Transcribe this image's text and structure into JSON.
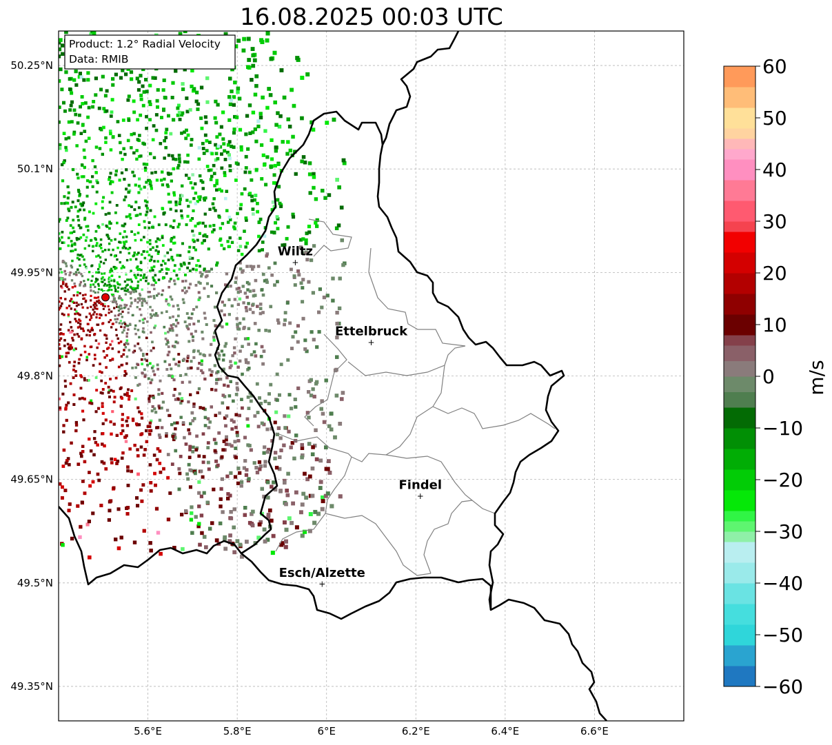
{
  "title": "16.08.2025 00:03 UTC",
  "info": {
    "product": "Product: 1.2° Radial Velocity",
    "data": "Data: RMIB"
  },
  "map": {
    "lon_range": [
      5.4,
      6.8
    ],
    "lat_range": [
      49.3,
      50.3
    ],
    "x_ticks": [
      {
        "value": 5.6,
        "label": "5.6°E"
      },
      {
        "value": 5.8,
        "label": "5.8°E"
      },
      {
        "value": 6.0,
        "label": "6°E"
      },
      {
        "value": 6.2,
        "label": "6.2°E"
      },
      {
        "value": 6.4,
        "label": "6.4°E"
      },
      {
        "value": 6.6,
        "label": "6.6°E"
      }
    ],
    "y_ticks": [
      {
        "value": 50.25,
        "label": "50.25°N"
      },
      {
        "value": 50.1,
        "label": "50.1°N"
      },
      {
        "value": 49.95,
        "label": "49.95°N"
      },
      {
        "value": 49.8,
        "label": "49.8°N"
      },
      {
        "value": 49.65,
        "label": "49.65°N"
      },
      {
        "value": 49.5,
        "label": "49.5°N"
      },
      {
        "value": 49.35,
        "label": "49.35°N"
      }
    ],
    "radar_site": {
      "lon": 5.505,
      "lat": 49.914
    },
    "cities": [
      {
        "name": "Wiltz",
        "lon": 5.93,
        "lat": 49.965
      },
      {
        "name": "Ettelbruck",
        "lon": 6.1,
        "lat": 49.849
      },
      {
        "name": "Findel",
        "lon": 6.21,
        "lat": 49.626
      },
      {
        "name": "Esch/Alzette",
        "lon": 5.99,
        "lat": 49.499
      }
    ]
  },
  "colorbar": {
    "label": "m/s",
    "min": -60,
    "max": 60,
    "ticks": [
      {
        "value": 60,
        "label": "60"
      },
      {
        "value": 50,
        "label": "50"
      },
      {
        "value": 40,
        "label": "40"
      },
      {
        "value": 30,
        "label": "30"
      },
      {
        "value": 20,
        "label": "20"
      },
      {
        "value": 10,
        "label": "10"
      },
      {
        "value": 0,
        "label": "0"
      },
      {
        "value": -10,
        "label": "−10"
      },
      {
        "value": -20,
        "label": "−20"
      },
      {
        "value": -30,
        "label": "−30"
      },
      {
        "value": -40,
        "label": "−40"
      },
      {
        "value": -50,
        "label": "−50"
      },
      {
        "value": -60,
        "label": "−60"
      }
    ],
    "bands": [
      {
        "from": -60,
        "to": -56,
        "color": "#1f78c1"
      },
      {
        "from": -56,
        "to": -52,
        "color": "#2aa4d0"
      },
      {
        "from": -52,
        "to": -48,
        "color": "#2fd6da"
      },
      {
        "from": -48,
        "to": -44,
        "color": "#45dede"
      },
      {
        "from": -44,
        "to": -40,
        "color": "#6ae3e3"
      },
      {
        "from": -40,
        "to": -36,
        "color": "#9aeaea"
      },
      {
        "from": -36,
        "to": -32,
        "color": "#b9eef0"
      },
      {
        "from": -32,
        "to": -30,
        "color": "#8ff0a8"
      },
      {
        "from": -30,
        "to": -28,
        "color": "#5ef570"
      },
      {
        "from": -28,
        "to": -26,
        "color": "#30f545"
      },
      {
        "from": -26,
        "to": -22,
        "color": "#05e808"
      },
      {
        "from": -22,
        "to": -18,
        "color": "#02cc06"
      },
      {
        "from": -18,
        "to": -14,
        "color": "#01ad05"
      },
      {
        "from": -14,
        "to": -10,
        "color": "#018f05"
      },
      {
        "from": -10,
        "to": -6,
        "color": "#036b04"
      },
      {
        "from": -6,
        "to": -3,
        "color": "#4f7e4f"
      },
      {
        "from": -3,
        "to": 0,
        "color": "#6d8a6a"
      },
      {
        "from": 0,
        "to": 3,
        "color": "#8a7b7b"
      },
      {
        "from": 3,
        "to": 6,
        "color": "#8a6068"
      },
      {
        "from": 6,
        "to": 8,
        "color": "#84404a"
      },
      {
        "from": 8,
        "to": 12,
        "color": "#6b0000"
      },
      {
        "from": 12,
        "to": 16,
        "color": "#8f0000"
      },
      {
        "from": 16,
        "to": 20,
        "color": "#b30000"
      },
      {
        "from": 20,
        "to": 24,
        "color": "#d40000"
      },
      {
        "from": 24,
        "to": 28,
        "color": "#f20000"
      },
      {
        "from": 28,
        "to": 30,
        "color": "#f5434f"
      },
      {
        "from": 30,
        "to": 34,
        "color": "#ff5a70"
      },
      {
        "from": 34,
        "to": 38,
        "color": "#ff7a95"
      },
      {
        "from": 38,
        "to": 42,
        "color": "#ff8fc0"
      },
      {
        "from": 42,
        "to": 44,
        "color": "#ffa8cc"
      },
      {
        "from": 44,
        "to": 46,
        "color": "#ffb8b8"
      },
      {
        "from": 46,
        "to": 48,
        "color": "#ffd3a0"
      },
      {
        "from": 48,
        "to": 52,
        "color": "#ffe099"
      },
      {
        "from": 52,
        "to": 56,
        "color": "#ffbd78"
      },
      {
        "from": 56,
        "to": 60,
        "color": "#ff9a5a"
      }
    ]
  }
}
